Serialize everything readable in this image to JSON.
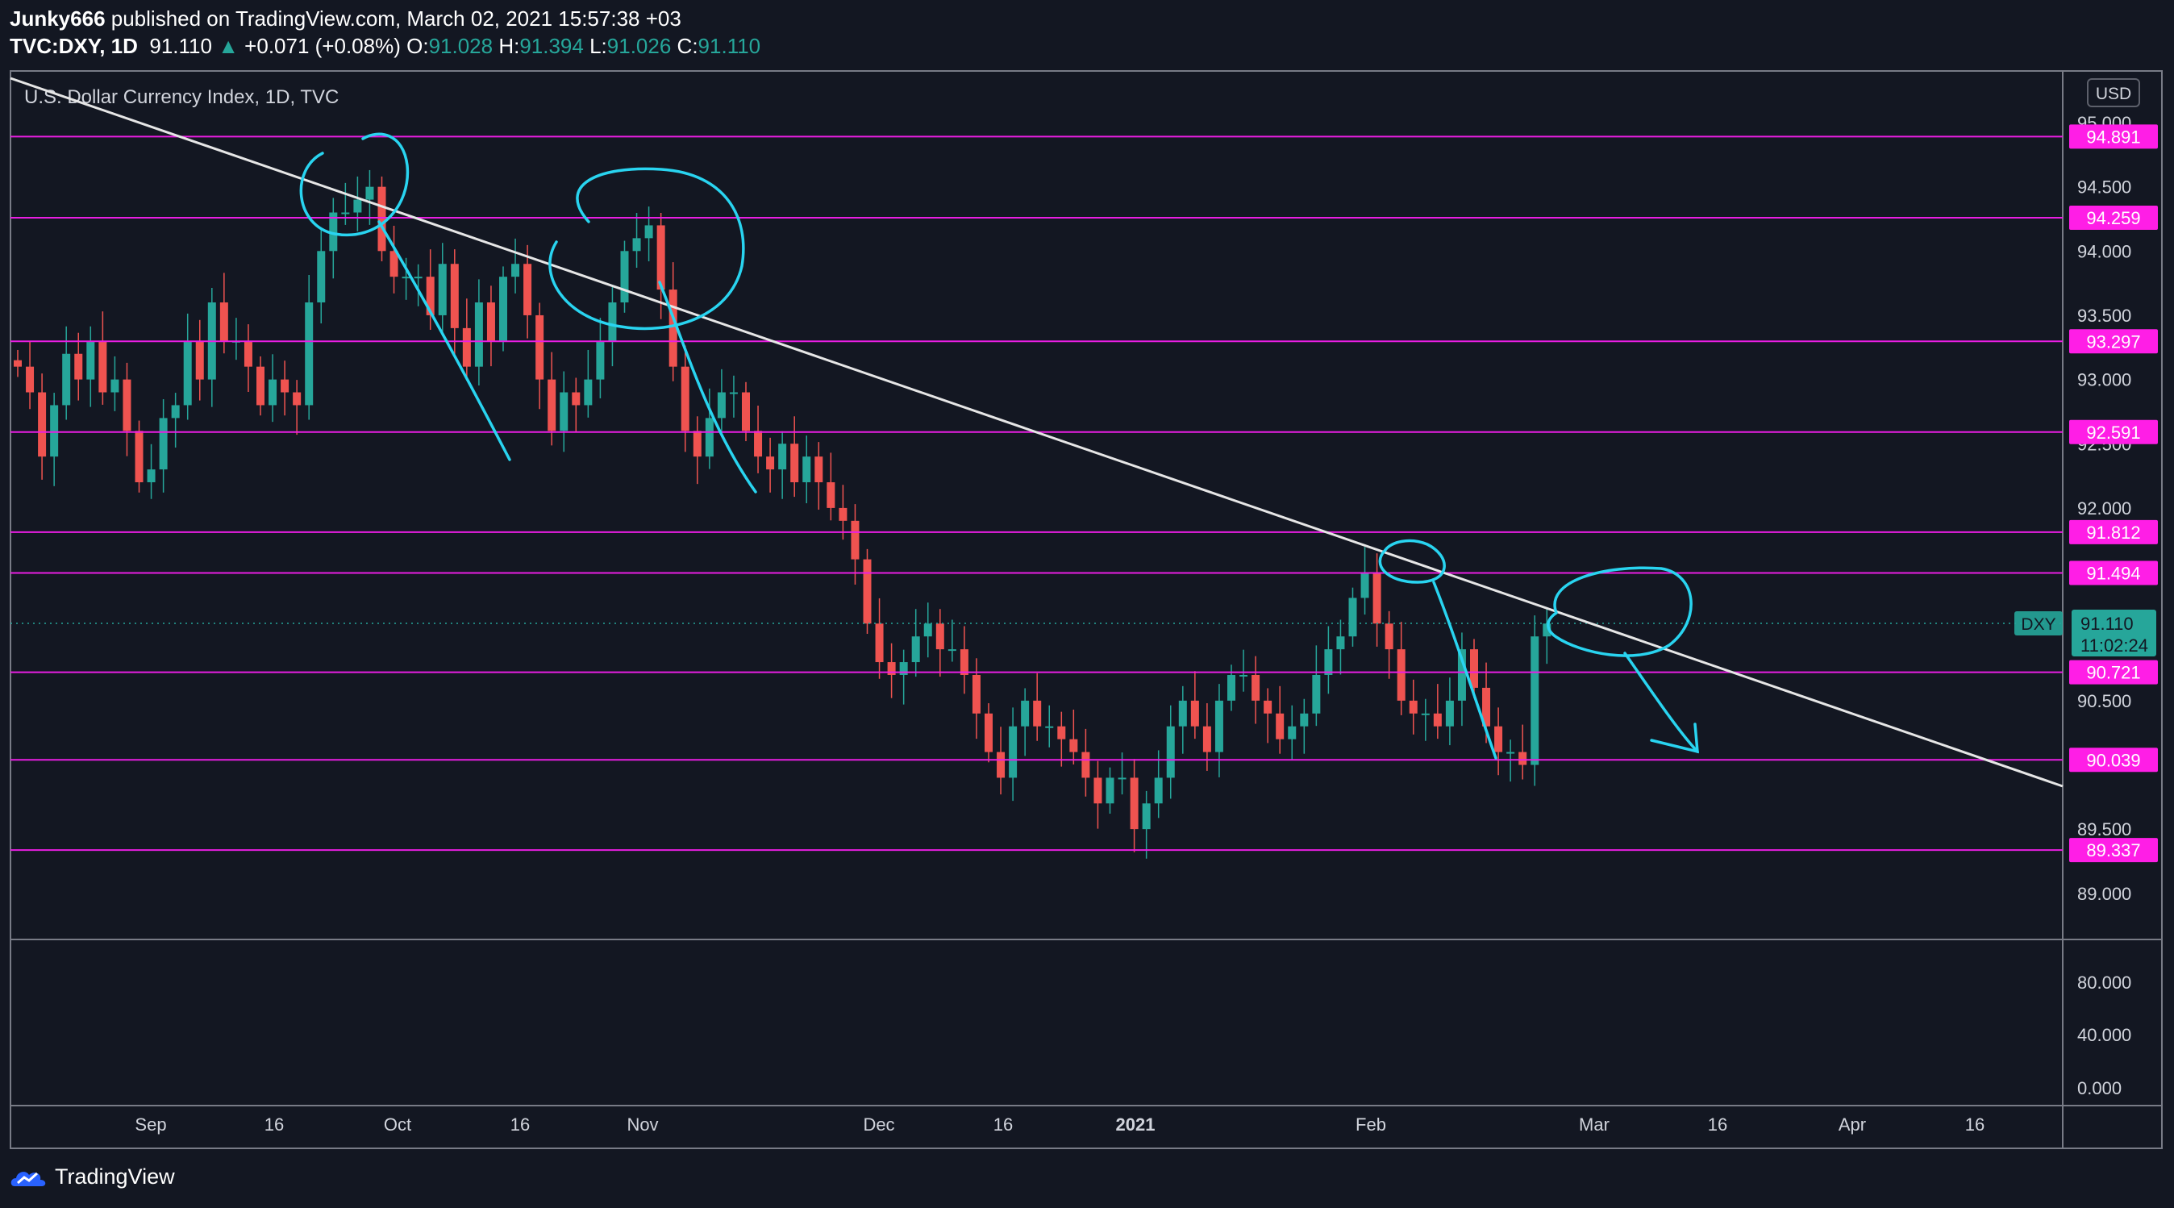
{
  "header": {
    "author": "Junky666",
    "published_text": " published on TradingView.com, March 02, 2021 15:57:38 +03",
    "symbol": "TVC:DXY, 1D",
    "last": "91.110",
    "change_arrow": "▲",
    "change": "+0.071 (+0.08%)",
    "o_label": "O:",
    "o_val": "91.028",
    "h_label": "H:",
    "h_val": "91.394",
    "l_label": "L:",
    "l_val": "91.026",
    "c_label": "C:",
    "c_val": "91.110"
  },
  "chart": {
    "legend_title": "U.S. Dollar Currency Index, 1D, TVC",
    "currency_button": "USD",
    "symbol_tag": "DXY",
    "last_price": "91.110",
    "countdown": "11:02:24",
    "price_ticks": [
      "95.000",
      "94.500",
      "94.000",
      "93.500",
      "93.000",
      "92.500",
      "92.000",
      "91.500",
      "91.000",
      "90.500",
      "90.000",
      "89.500",
      "89.000"
    ],
    "indicator_ticks": [
      "80.000",
      "40.000",
      "0.000"
    ],
    "time_ticks": [
      {
        "label": "Sep",
        "bold": false
      },
      {
        "label": "16",
        "bold": false
      },
      {
        "label": "Oct",
        "bold": false
      },
      {
        "label": "16",
        "bold": false
      },
      {
        "label": "Nov",
        "bold": false
      },
      {
        "label": "Dec",
        "bold": false
      },
      {
        "label": "16",
        "bold": false
      },
      {
        "label": "2021",
        "bold": true
      },
      {
        "label": "Feb",
        "bold": false
      },
      {
        "label": "Mar",
        "bold": false
      },
      {
        "label": "16",
        "bold": false
      },
      {
        "label": "Apr",
        "bold": false
      },
      {
        "label": "16",
        "bold": false
      }
    ],
    "horizontal_levels": [
      "94.891",
      "94.259",
      "93.297",
      "92.591",
      "91.812",
      "91.494",
      "90.721",
      "90.039",
      "89.337"
    ],
    "colors": {
      "level_line": "#e91ee3",
      "level_tag_bg": "#ff1ee6",
      "up": "#26a69a",
      "down": "#ef5350",
      "trendline": "#e6e6e6",
      "drawing": "#29d4f0",
      "price_tag": "#26a69a"
    }
  },
  "chart_data": {
    "type": "candlestick",
    "symbol": "TVC:DXY",
    "interval": "1D",
    "y_range": [
      89.0,
      95.0
    ],
    "horizontal_levels": [
      94.891,
      94.259,
      93.297,
      92.591,
      91.812,
      91.494,
      90.721,
      90.039,
      89.337
    ],
    "last": 91.11,
    "ohlc_last": {
      "open": 91.028,
      "high": 91.394,
      "low": 91.026,
      "close": 91.11
    },
    "series": [
      {
        "values": [
          93.1,
          92.9,
          92.4,
          92.8,
          93.2,
          93.0,
          93.3,
          92.9,
          93.0,
          92.6,
          92.2,
          92.3,
          92.7,
          92.8,
          93.3,
          93.0,
          93.6,
          93.3,
          93.3,
          93.1,
          92.8,
          93.0,
          92.9,
          92.8,
          93.6,
          94.0,
          94.3,
          94.3,
          94.4,
          94.5,
          94.0,
          93.8,
          93.8,
          93.8,
          93.5,
          93.9,
          93.4,
          93.1,
          93.6,
          93.3,
          93.8,
          93.9,
          93.5,
          93.0,
          92.6,
          92.9,
          92.8,
          93.0,
          93.3,
          93.6,
          94.0,
          94.1,
          94.2,
          93.7,
          93.1,
          92.6,
          92.4,
          92.7,
          92.9,
          92.9,
          92.6,
          92.4,
          92.3,
          92.5,
          92.2,
          92.4,
          92.2,
          92.0,
          91.9,
          91.6,
          91.1,
          90.8,
          90.7,
          90.8,
          91.0,
          91.1,
          90.9,
          90.9,
          90.7,
          90.4,
          90.1,
          89.9,
          90.3,
          90.5,
          90.3,
          90.3,
          90.2,
          90.1,
          89.9,
          89.7,
          89.9,
          89.9,
          89.5,
          89.7,
          89.9,
          90.3,
          90.5,
          90.3,
          90.1,
          90.5,
          90.7,
          90.7,
          90.5,
          90.4,
          90.2,
          90.3,
          90.4,
          90.7,
          90.9,
          91.0,
          91.3,
          91.5,
          91.1,
          90.9,
          90.5,
          90.4,
          90.4,
          90.3,
          90.5,
          90.9,
          90.6,
          90.3,
          90.1,
          90.1,
          90.0,
          91.0,
          91.1
        ]
      }
    ]
  }
}
